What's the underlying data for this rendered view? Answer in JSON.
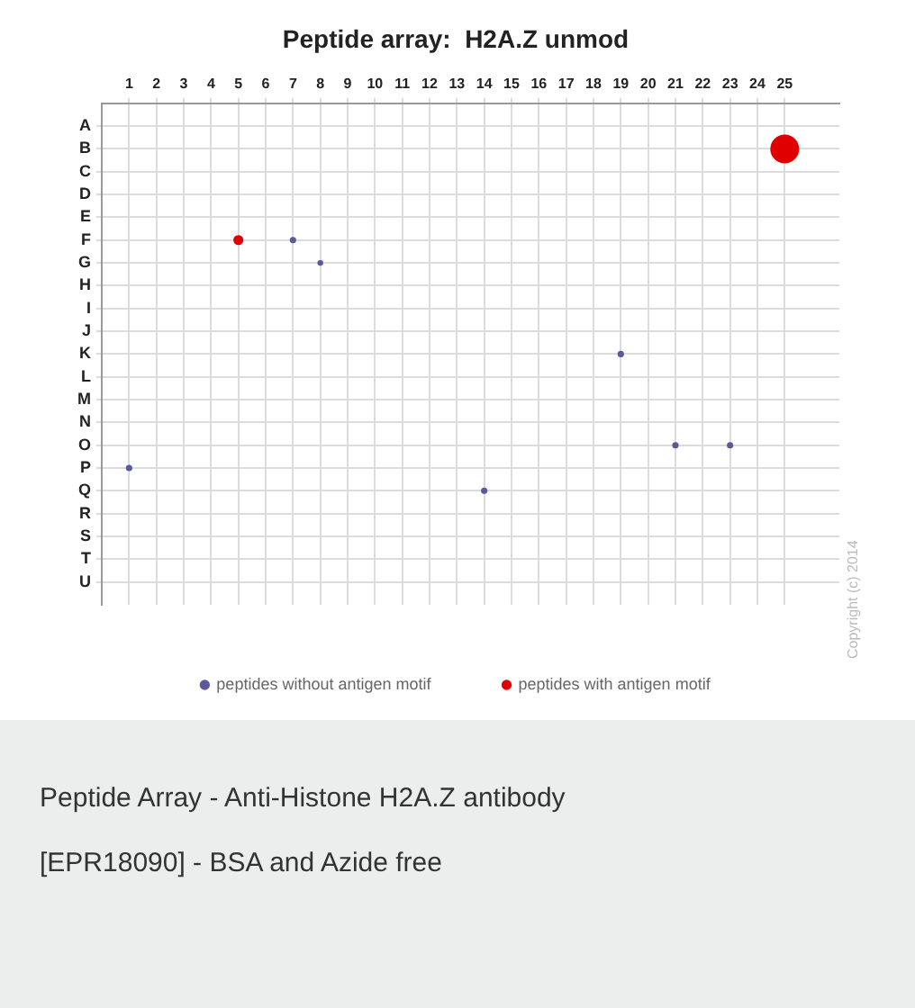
{
  "chart_data": {
    "type": "bubble",
    "orientation": "horizontal",
    "title": "Peptide array:  H2A.Z unmod",
    "xlim": [
      0,
      27
    ],
    "xticks": [
      1,
      2,
      3,
      4,
      5,
      6,
      7,
      8,
      9,
      10,
      11,
      12,
      13,
      14,
      15,
      16,
      17,
      18,
      19,
      20,
      21,
      22,
      23,
      24,
      25
    ],
    "categories": [
      "A",
      "B",
      "C",
      "D",
      "E",
      "F",
      "G",
      "H",
      "I",
      "J",
      "K",
      "L",
      "M",
      "N",
      "O",
      "P",
      "Q",
      "R",
      "S",
      "T",
      "U"
    ],
    "series": [
      {
        "name": "peptides without antigen motif",
        "color": "#5a5a9a",
        "values": [
          null,
          null,
          null,
          null,
          null,
          7,
          8,
          null,
          null,
          null,
          19,
          null,
          null,
          null,
          21,
          1,
          14,
          null,
          null,
          null,
          null
        ],
        "sizes": [
          null,
          null,
          null,
          null,
          null,
          0.05,
          0.04,
          null,
          null,
          null,
          0.05,
          null,
          null,
          null,
          0.05,
          0.05,
          0.05,
          null,
          null,
          null,
          null
        ]
      },
      {
        "color": "#5a5a9a",
        "values": [
          null,
          null,
          null,
          null,
          null,
          null,
          null,
          null,
          null,
          null,
          null,
          null,
          null,
          null,
          23,
          null,
          null,
          null,
          null,
          null,
          null
        ],
        "sizes": [
          null,
          null,
          null,
          null,
          null,
          null,
          null,
          null,
          null,
          null,
          null,
          null,
          null,
          null,
          0.05,
          null,
          null,
          null,
          null,
          null,
          null
        ]
      },
      {
        "name": "peptides with antigen motif",
        "color": "#e00000",
        "values": [
          null,
          25,
          null,
          null,
          null,
          5,
          null,
          null,
          null,
          null,
          null,
          null,
          null,
          null,
          null,
          null,
          null,
          null,
          null,
          null,
          null
        ],
        "sizes": [
          null,
          1,
          null,
          null,
          null,
          0.12,
          null,
          null,
          null,
          null,
          null,
          null,
          null,
          null,
          null,
          null,
          null,
          null,
          null,
          null,
          null
        ]
      }
    ],
    "grid": true,
    "legend": "bottom",
    "annotations": [
      "Copyright (c) 2014",
      "Peptide Array - Anti-Histone H2A.Z antibody",
      "[EPR18090] - BSA and Azide free"
    ]
  }
}
